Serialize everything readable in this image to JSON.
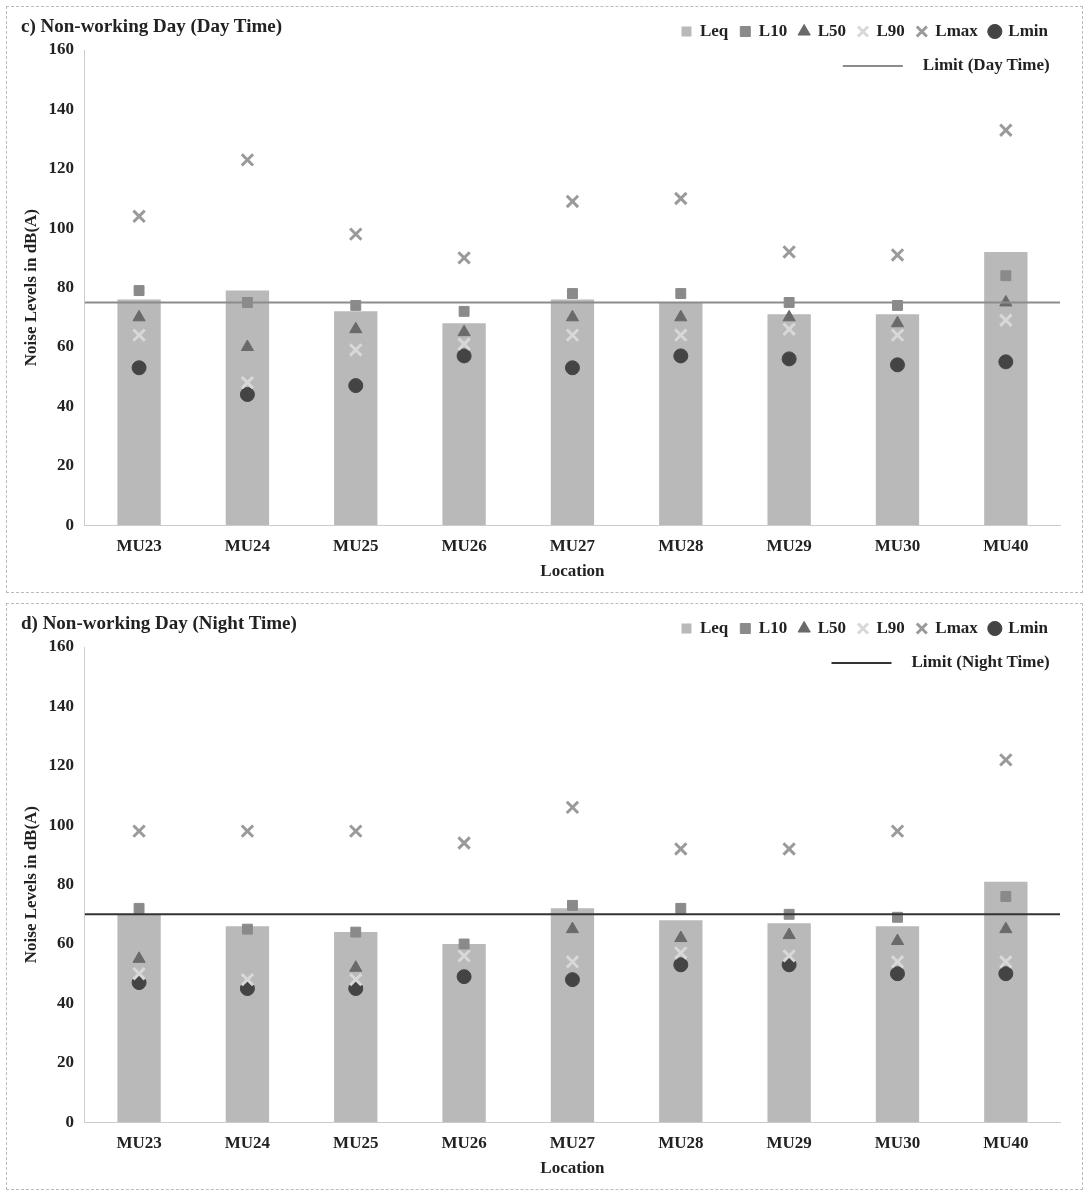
{
  "chart_data": [
    {
      "type": "bar",
      "title": "c) Non-working Day (Day Time)",
      "xlabel": "Location",
      "ylabel": "Noise Levels in dB(A)",
      "categories": [
        "MU23",
        "MU24",
        "MU25",
        "MU26",
        "MU27",
        "MU28",
        "MU29",
        "MU30",
        "MU40"
      ],
      "ylim": [
        0,
        160
      ],
      "yticks": [
        0,
        20,
        40,
        60,
        80,
        100,
        120,
        140,
        160
      ],
      "legend": "top right",
      "grid": false,
      "series": [
        {
          "name": "Leq",
          "color": "#b9b9b9",
          "values": [
            76,
            79,
            72,
            68,
            76,
            75,
            71,
            71,
            92
          ]
        },
        {
          "name": "L10",
          "type": "scatter",
          "marker": "square",
          "color": "#8a8a8a",
          "values": [
            79,
            75,
            74,
            72,
            78,
            78,
            75,
            74,
            84
          ]
        },
        {
          "name": "L50",
          "type": "scatter",
          "marker": "triangle",
          "color": "#6a6a6a",
          "values": [
            70,
            60,
            66,
            65,
            70,
            70,
            70,
            68,
            75
          ]
        },
        {
          "name": "L90",
          "type": "scatter",
          "marker": "cross",
          "color": "#d8d8d8",
          "values": [
            64,
            48,
            59,
            61,
            64,
            64,
            66,
            64,
            69
          ]
        },
        {
          "name": "Lmax",
          "type": "scatter",
          "marker": "cross",
          "color": "#9a9a9a",
          "values": [
            104,
            123,
            98,
            90,
            109,
            110,
            92,
            91,
            133
          ]
        },
        {
          "name": "Lmin",
          "type": "scatter",
          "marker": "circle",
          "color": "#444444",
          "values": [
            53,
            44,
            47,
            57,
            53,
            57,
            56,
            54,
            55
          ]
        }
      ],
      "ref_lines": [
        {
          "axis": "y",
          "value": 75,
          "label": "Limit (Day Time)",
          "color": "#8c8c8c"
        }
      ]
    },
    {
      "type": "bar",
      "title": "d) Non-working Day (Night Time)",
      "xlabel": "Location",
      "ylabel": "Noise Levels in dB(A)",
      "categories": [
        "MU23",
        "MU24",
        "MU25",
        "MU26",
        "MU27",
        "MU28",
        "MU29",
        "MU30",
        "MU40"
      ],
      "ylim": [
        0,
        160
      ],
      "yticks": [
        0,
        20,
        40,
        60,
        80,
        100,
        120,
        140,
        160
      ],
      "legend": "top right",
      "grid": false,
      "series": [
        {
          "name": "Leq",
          "color": "#b9b9b9",
          "values": [
            70,
            66,
            64,
            60,
            72,
            68,
            67,
            66,
            81
          ]
        },
        {
          "name": "L10",
          "type": "scatter",
          "marker": "square",
          "color": "#8a8a8a",
          "values": [
            72,
            65,
            64,
            60,
            73,
            72,
            70,
            69,
            76
          ]
        },
        {
          "name": "L50",
          "type": "scatter",
          "marker": "triangle",
          "color": "#6a6a6a",
          "values": [
            55,
            null,
            52,
            null,
            65,
            62,
            63,
            61,
            65
          ]
        },
        {
          "name": "L90",
          "type": "scatter",
          "marker": "cross",
          "color": "#d8d8d8",
          "values": [
            50,
            48,
            48,
            56,
            54,
            57,
            56,
            54,
            54
          ]
        },
        {
          "name": "Lmax",
          "type": "scatter",
          "marker": "cross",
          "color": "#9a9a9a",
          "values": [
            98,
            98,
            98,
            94,
            106,
            92,
            92,
            98,
            122
          ]
        },
        {
          "name": "Lmin",
          "type": "scatter",
          "marker": "circle",
          "color": "#444444",
          "values": [
            47,
            45,
            45,
            49,
            48,
            53,
            53,
            50,
            50
          ]
        }
      ],
      "ref_lines": [
        {
          "axis": "y",
          "value": 70,
          "label": "Limit (Night Time)",
          "color": "#333333"
        }
      ]
    }
  ]
}
